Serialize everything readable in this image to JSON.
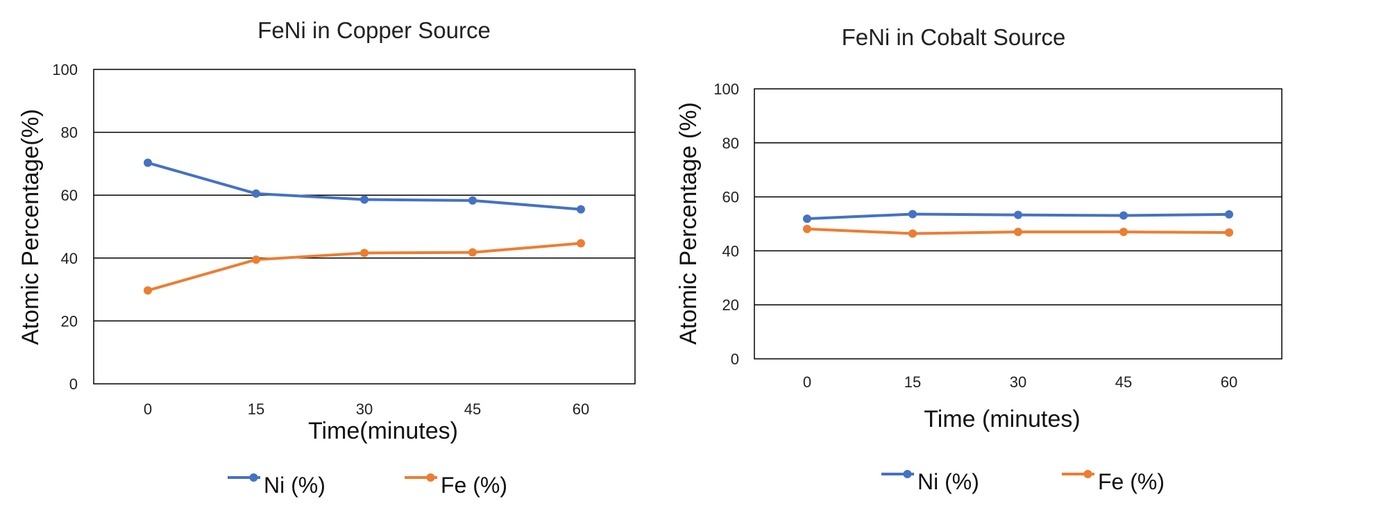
{
  "chart_data": [
    {
      "type": "line",
      "title": "FeNi in Copper Source",
      "xlabel": "Time(minutes)",
      "ylabel": "Atomic Percentage(%)",
      "categories": [
        "0",
        "15",
        "30",
        "45",
        "60"
      ],
      "ylim": [
        0,
        100
      ],
      "yticks": [
        "0",
        "20",
        "40",
        "60",
        "80",
        "100"
      ],
      "grid": true,
      "legend_position": "bottom",
      "series": [
        {
          "name": "Ni (%)",
          "color": "#4472C4",
          "values": [
            70.3,
            60.5,
            58.6,
            58.3,
            55.5
          ]
        },
        {
          "name": "Fe (%)",
          "color": "#ED7D31",
          "values": [
            29.7,
            39.5,
            41.6,
            41.8,
            44.7
          ]
        }
      ]
    },
    {
      "type": "line",
      "title": "FeNi in Cobalt Source",
      "xlabel": "Time (minutes)",
      "ylabel": "Atomic Percentage (%)",
      "categories": [
        "0",
        "15",
        "30",
        "45",
        "60"
      ],
      "ylim": [
        0,
        100
      ],
      "yticks": [
        "0",
        "20",
        "40",
        "60",
        "80",
        "100"
      ],
      "grid": true,
      "legend_position": "bottom",
      "series": [
        {
          "name": "Ni (%)",
          "color": "#4472C4",
          "values": [
            51.9,
            53.6,
            53.3,
            53.1,
            53.5
          ]
        },
        {
          "name": "Fe (%)",
          "color": "#ED7D31",
          "values": [
            48.1,
            46.4,
            47.0,
            47.0,
            46.8
          ]
        }
      ]
    }
  ]
}
